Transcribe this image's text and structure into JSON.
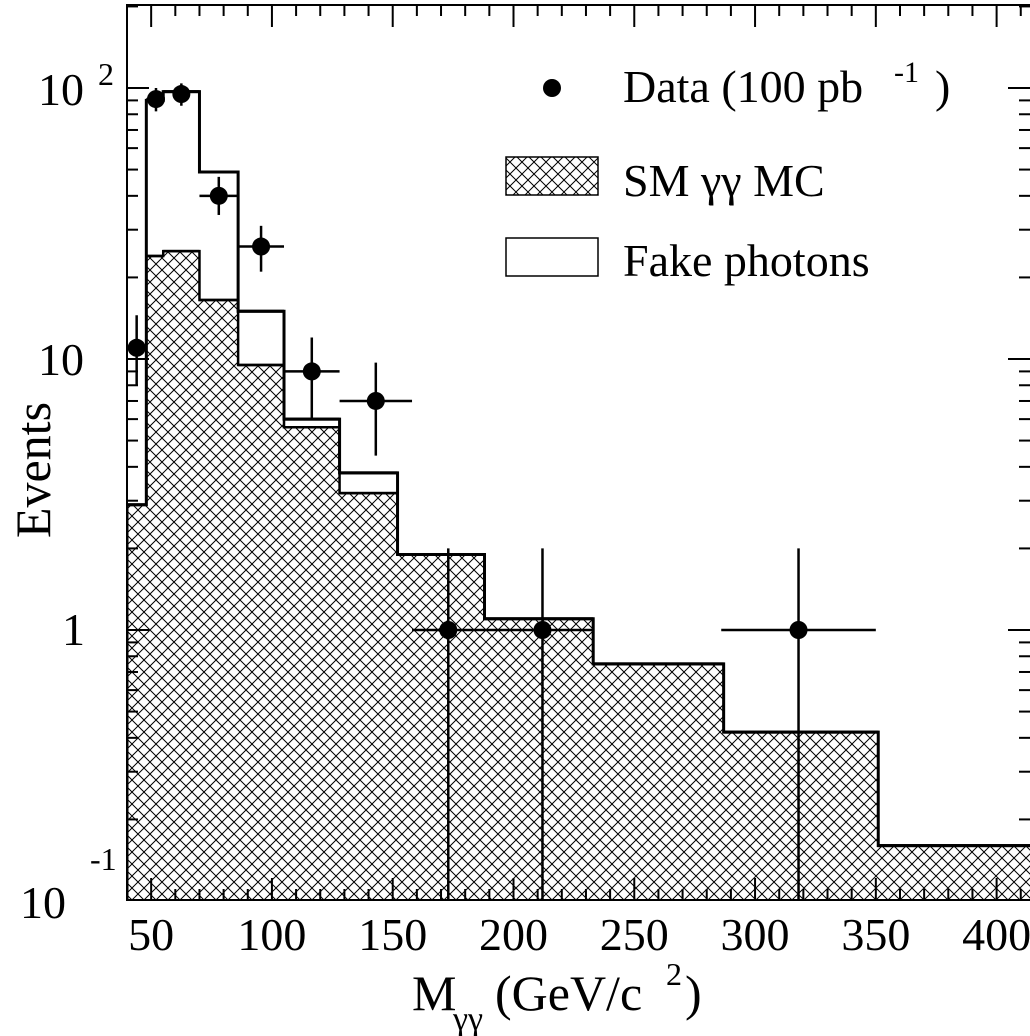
{
  "chart_data": {
    "type": "histogram",
    "title": "",
    "xlabel": "M",
    "xlabel_sub": "γγ",
    "xlabel_unit_prefix": " (GeV/c",
    "xlabel_unit_sup": "2",
    "xlabel_unit_suffix": ")",
    "ylabel": "Events",
    "log_y": true,
    "xlim": [
      40,
      425
    ],
    "ylim": [
      0.1,
      200
    ],
    "x_ticks": [
      50,
      100,
      150,
      200,
      250,
      300,
      350,
      400
    ],
    "x_tick_labels": [
      "50",
      "100",
      "150",
      "200",
      "250",
      "300",
      "350",
      "400"
    ],
    "y_tick_labels": [
      {
        "value": 100,
        "base": "10",
        "exp": "2"
      },
      {
        "value": 10,
        "base": "10",
        "exp": ""
      },
      {
        "value": 1,
        "base": "1",
        "exp": ""
      },
      {
        "value": 0.1,
        "base": "10",
        "exp": "-1"
      }
    ],
    "bin_edges": [
      40,
      48,
      55,
      70,
      86,
      105,
      128,
      152,
      188,
      233,
      287,
      351,
      425
    ],
    "series": [
      {
        "name": "SM γγ MC",
        "style": "hatched",
        "values": [
          2.9,
          24,
          25,
          16.5,
          9.5,
          5.6,
          3.2,
          1.9,
          1.1,
          0.75,
          0.42,
          0.16
        ]
      },
      {
        "name": "Fake photons",
        "style": "open-stacked-total",
        "values": [
          2.9,
          90,
          97,
          49,
          15,
          6.0,
          3.8,
          1.9,
          1.1,
          0.75,
          0.42,
          0.16
        ]
      }
    ],
    "data_points": {
      "name": "Data (100 pb",
      "name_sup": "-1",
      "name_suffix": ")",
      "points": [
        {
          "x": 44,
          "y": 11,
          "xlo": 44,
          "xhi": 44,
          "ylo": 8,
          "yhi": 14.5
        },
        {
          "x": 52,
          "y": 91,
          "xlo": 48,
          "xhi": 55,
          "ylo": 82,
          "yhi": 100
        },
        {
          "x": 62.5,
          "y": 95,
          "xlo": 60,
          "xhi": 65,
          "ylo": 86,
          "yhi": 104
        },
        {
          "x": 78,
          "y": 40,
          "xlo": 70,
          "xhi": 86,
          "ylo": 34,
          "yhi": 47
        },
        {
          "x": 95.5,
          "y": 26,
          "xlo": 86,
          "xhi": 105,
          "ylo": 21,
          "yhi": 31
        },
        {
          "x": 116.5,
          "y": 9,
          "xlo": 105,
          "xhi": 128,
          "ylo": 6,
          "yhi": 12
        },
        {
          "x": 143,
          "y": 7,
          "xlo": 128,
          "xhi": 158,
          "ylo": 4.4,
          "yhi": 9.7
        },
        {
          "x": 173,
          "y": 1,
          "xlo": 158,
          "xhi": 188,
          "ylo": 0.1,
          "yhi": 2
        },
        {
          "x": 212,
          "y": 1,
          "xlo": 188,
          "xhi": 233,
          "ylo": 0.1,
          "yhi": 2
        },
        {
          "x": 318,
          "y": 1,
          "xlo": 286,
          "xhi": 350,
          "ylo": 0.1,
          "yhi": 2
        }
      ]
    },
    "legend_position": "top-right"
  }
}
